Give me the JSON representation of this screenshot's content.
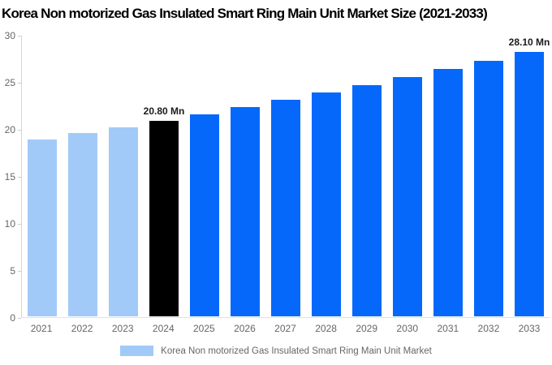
{
  "chart_data": {
    "type": "bar",
    "title": "Korea Non motorized Gas Insulated Smart Ring Main Unit Market Size (2021-2033)",
    "categories": [
      "2021",
      "2022",
      "2023",
      "2024",
      "2025",
      "2026",
      "2027",
      "2028",
      "2029",
      "2030",
      "2031",
      "2032",
      "2033"
    ],
    "values": [
      18.81,
      19.45,
      20.11,
      20.8,
      21.51,
      22.24,
      23.0,
      23.78,
      24.59,
      25.43,
      26.3,
      27.18,
      28.1
    ],
    "unit": "Mn",
    "point_labels": [
      "",
      "",
      "",
      "20.80 Mn",
      "",
      "",
      "",
      "",
      "",
      "",
      "",
      "",
      "28.10 Mn"
    ],
    "bar_colors": [
      "#a2caf8",
      "#a2caf8",
      "#a2caf8",
      "#000000",
      "#0668fb",
      "#0668fb",
      "#0668fb",
      "#0668fb",
      "#0668fb",
      "#0668fb",
      "#0668fb",
      "#0668fb",
      "#0668fb"
    ],
    "xlabel": "",
    "ylabel": "",
    "ylim": [
      0,
      30
    ],
    "yticks": [
      0,
      5,
      10,
      15,
      20,
      25,
      30
    ],
    "grid": false,
    "legend": {
      "label": "Korea Non motorized Gas Insulated Smart Ring Main Unit Market",
      "swatch_color": "#a2caf8",
      "position": "bottom-center"
    },
    "colors": {
      "historical_bar": "#a2caf8",
      "highlight_bar": "#000000",
      "forecast_bar": "#0668fb",
      "axis_line": "#d4d4d4",
      "tick_text": "#666666",
      "value_label_text": "#1a1a1a",
      "title_text": "#000000",
      "background": "#ffffff"
    }
  }
}
